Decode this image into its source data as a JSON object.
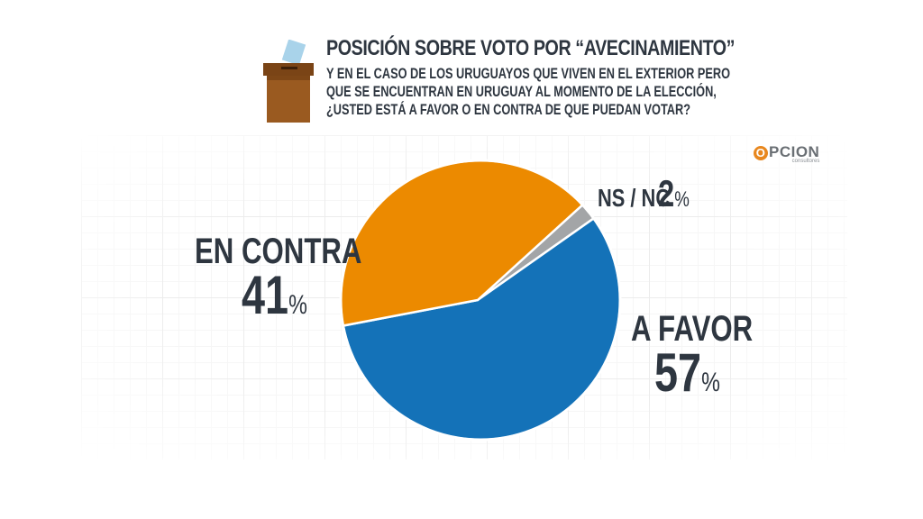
{
  "header": {
    "title": "POSICIÓN SOBRE VOTO POR “AVECINAMIENTO”",
    "question_lines": [
      "Y EN EL CASO DE LOS URUGUAYOS QUE VIVEN EN EL EXTERIOR PERO",
      "QUE SE ENCUENTRAN EN URUGUAY AL MOMENTO DE LA ELECCIÓN,",
      "¿USTED ESTÁ A FAVOR O EN CONTRA DE QUE PUEDAN VOTAR?"
    ]
  },
  "logo": {
    "main": "PCION",
    "letter": "O",
    "sub": "consultores"
  },
  "colors": {
    "a_favor": "#1472b8",
    "en_contra": "#ec8a00",
    "ns_nc": "#a3a5a7",
    "text": "#2e3640"
  },
  "chart_data": {
    "type": "pie",
    "title": "POSICIÓN SOBRE VOTO POR “AVECINAMIENTO”",
    "slices": [
      {
        "label": "A FAVOR",
        "value": 57,
        "value_text": "57",
        "unit": "%",
        "color": "#1472b8"
      },
      {
        "label": "EN CONTRA",
        "value": 41,
        "value_text": "41",
        "unit": "%",
        "color": "#ec8a00"
      },
      {
        "label": "NS / NC",
        "value": 2,
        "value_text": "2",
        "unit": "%",
        "color": "#a3a5a7"
      }
    ]
  }
}
